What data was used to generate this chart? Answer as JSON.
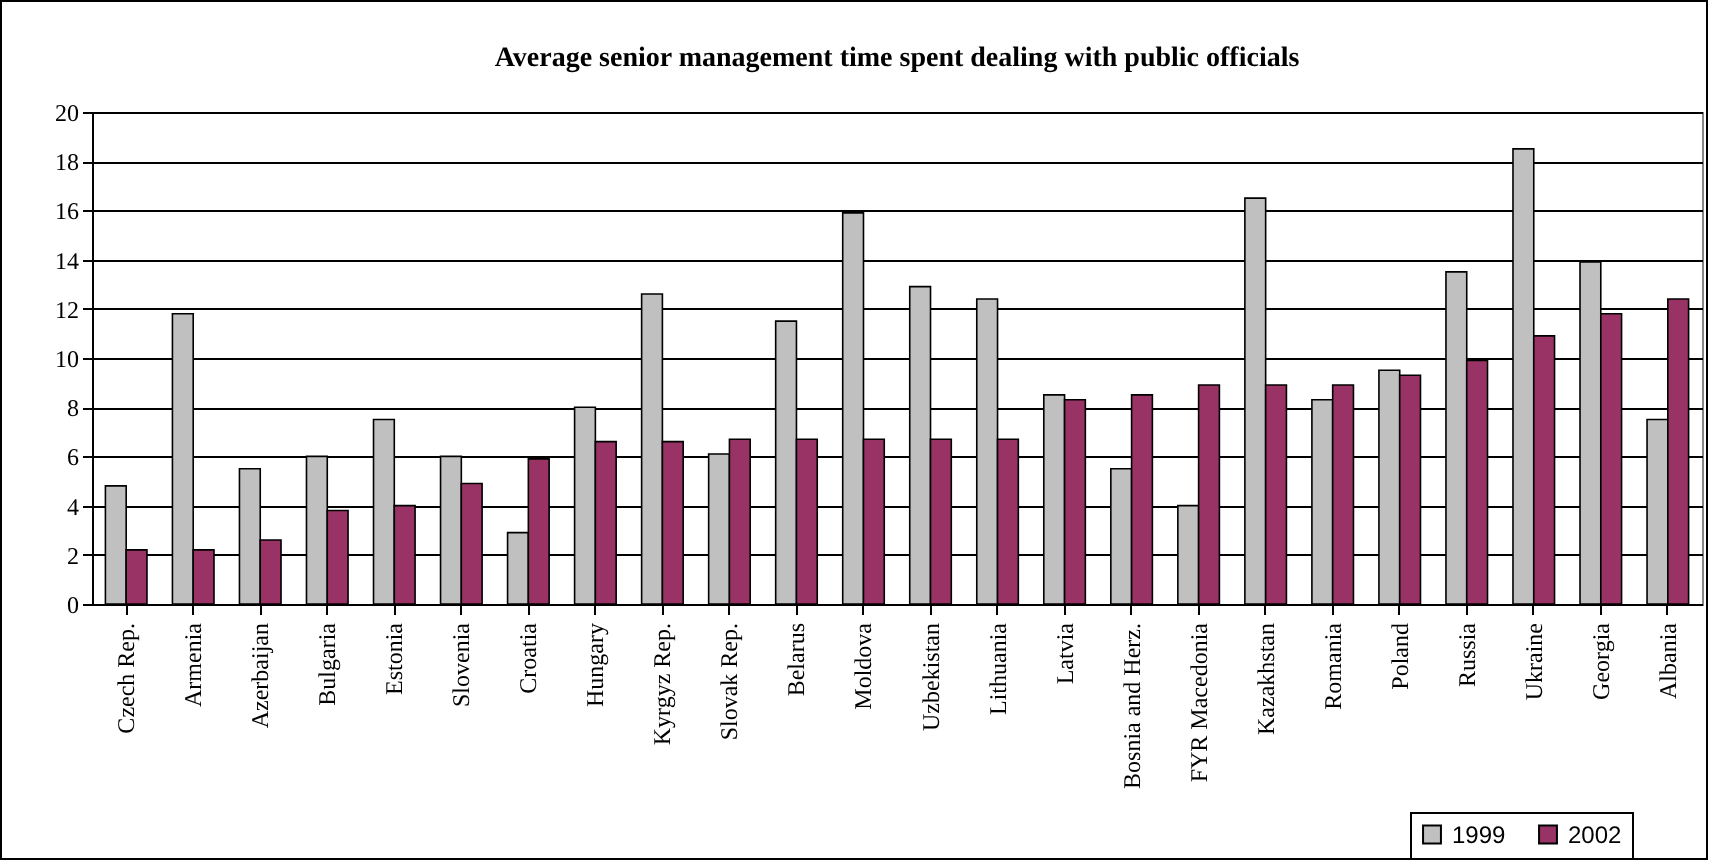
{
  "chart_data": {
    "type": "bar",
    "title": "Average senior management time spent dealing with public officials",
    "categories": [
      "Czech Rep.",
      "Armenia",
      "Azerbaijan",
      "Bulgaria",
      "Estonia",
      "Slovenia",
      "Croatia",
      "Hungary",
      "Kyrgyz Rep.",
      "Slovak Rep.",
      "Belarus",
      "Moldova",
      "Uzbekistan",
      "Lithuania",
      "Latvia",
      "Bosnia and Herz.",
      "FYR Macedonia",
      "Kazakhstan",
      "Romania",
      "Poland",
      "Russia",
      "Ukraine",
      "Georgia",
      "Albania"
    ],
    "series": [
      {
        "name": "1999",
        "color": "#c0c0c0",
        "values": [
          4.8,
          11.8,
          5.5,
          6.0,
          7.5,
          6.0,
          2.9,
          8.0,
          12.6,
          6.1,
          11.5,
          15.9,
          12.9,
          12.4,
          8.5,
          5.5,
          4.0,
          16.5,
          8.3,
          9.5,
          13.5,
          18.5,
          13.9,
          7.5
        ]
      },
      {
        "name": "2002",
        "color": "#993366",
        "values": [
          2.2,
          2.2,
          2.6,
          3.8,
          4.0,
          4.9,
          5.9,
          6.6,
          6.6,
          6.7,
          6.7,
          6.7,
          6.7,
          6.7,
          8.3,
          8.5,
          8.9,
          8.9,
          8.9,
          9.3,
          9.9,
          10.9,
          11.8,
          12.4
        ]
      }
    ],
    "ylim": [
      0,
      20
    ],
    "yticks": [
      0,
      2,
      4,
      6,
      8,
      10,
      12,
      14,
      16,
      18,
      20
    ],
    "grid": "y",
    "legend": "bottom right"
  }
}
